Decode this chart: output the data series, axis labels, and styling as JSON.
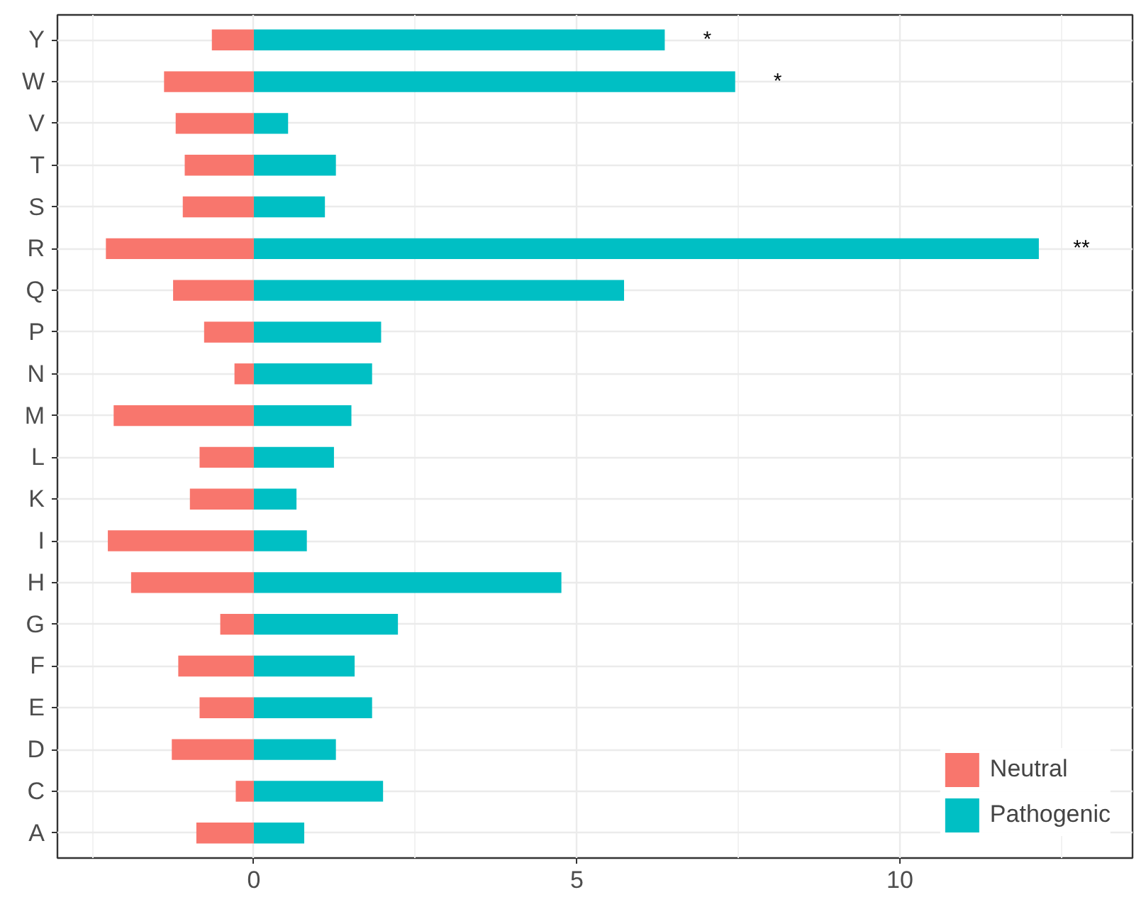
{
  "chart_data": {
    "type": "bar",
    "orientation": "horizontal",
    "stacked": true,
    "categories": [
      "Y",
      "W",
      "V",
      "T",
      "S",
      "R",
      "Q",
      "P",
      "N",
      "M",
      "L",
      "K",
      "I",
      "H",
      "G",
      "F",
      "E",
      "D",
      "C",
      "A"
    ],
    "series": [
      {
        "name": "Neutral",
        "color": "#f8766d",
        "values": [
          -0.65,
          -1.39,
          -1.21,
          -1.07,
          -1.1,
          -2.29,
          -1.25,
          -0.77,
          -0.3,
          -2.17,
          -0.84,
          -0.99,
          -2.26,
          -1.9,
          -0.52,
          -1.17,
          -0.84,
          -1.27,
          -0.28,
          -0.89
        ]
      },
      {
        "name": "Pathogenic",
        "color": "#00bfc4",
        "values": [
          6.36,
          7.45,
          0.53,
          1.27,
          1.1,
          12.15,
          5.73,
          1.97,
          1.83,
          1.51,
          1.24,
          0.66,
          0.82,
          4.76,
          2.23,
          1.56,
          1.83,
          1.27,
          2.0,
          0.78
        ],
        "value_labels": [
          "*",
          "*",
          null,
          null,
          null,
          "**",
          null,
          null,
          null,
          null,
          null,
          null,
          null,
          null,
          null,
          null,
          null,
          null,
          null,
          null
        ]
      }
    ],
    "xlim": [
      -3.04,
      13.6
    ],
    "xticks": [
      0,
      5,
      10
    ],
    "grid": true,
    "legend": "bottom right"
  }
}
